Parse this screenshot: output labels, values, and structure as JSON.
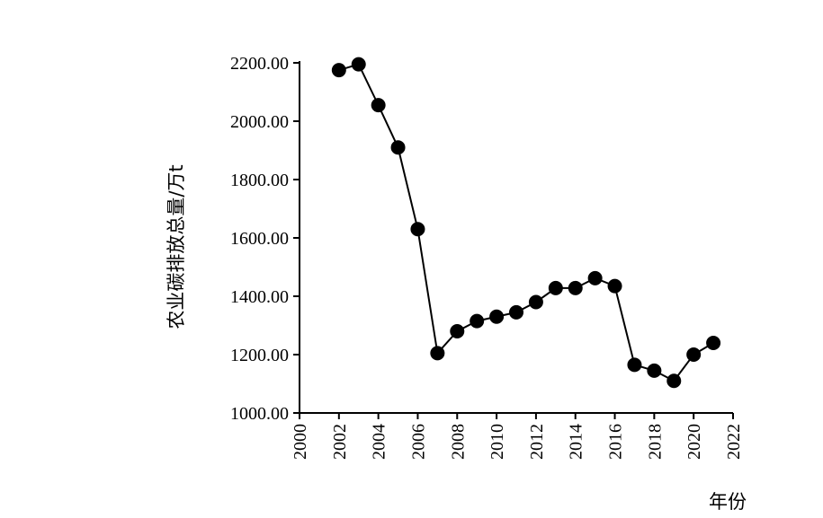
{
  "chart_data": {
    "type": "line",
    "title": "",
    "xlabel": "年份",
    "ylabel": "农业碳排放总量/万t",
    "xlim": [
      2000,
      2022
    ],
    "ylim": [
      1000,
      2200
    ],
    "x_ticks": [
      "2000",
      "2002",
      "2004",
      "2006",
      "2008",
      "2010",
      "2012",
      "2014",
      "2016",
      "2018",
      "2020",
      "2022"
    ],
    "y_ticks": [
      "1000.00",
      "1200.00",
      "1400.00",
      "1600.00",
      "1800.00",
      "2000.00",
      "2200.00"
    ],
    "grid": false,
    "legend": "none",
    "marker": "circle",
    "color": "#000000",
    "series": [
      {
        "x": [
          2002,
          2003,
          2004,
          2005,
          2006,
          2007,
          2008,
          2009,
          2010,
          2011,
          2012,
          2013,
          2014,
          2015,
          2016,
          2017,
          2018,
          2019,
          2020,
          2021
        ],
        "values": [
          2175,
          2195,
          2055,
          1910,
          1630,
          1205,
          1280,
          1315,
          1330,
          1345,
          1380,
          1428,
          1428,
          1462,
          1435,
          1165,
          1145,
          1110,
          1200,
          1240
        ]
      }
    ]
  }
}
